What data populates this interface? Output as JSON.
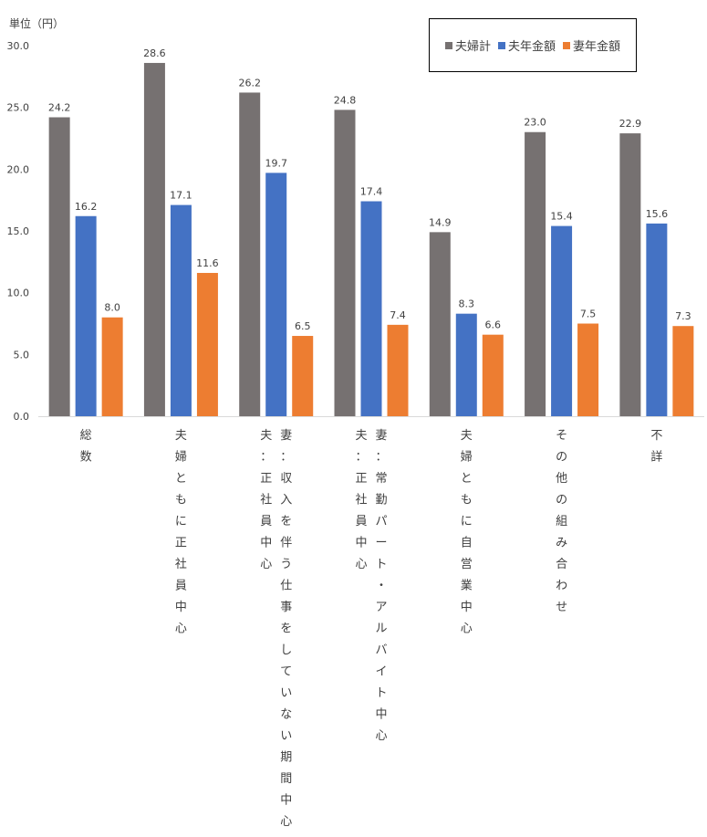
{
  "chart_data": {
    "type": "bar",
    "unit_label": "単位（円）",
    "categories": [
      [
        "総数"
      ],
      [
        "夫婦ともに正社員中心"
      ],
      [
        "夫：正社員中心",
        "妻：収入を伴う仕事をしていない期間中心"
      ],
      [
        "夫：正社員中心",
        "妻：常勤パート・アルバイト中心"
      ],
      [
        "夫婦ともに自営業中心"
      ],
      [
        "その他の組み合わせ"
      ],
      [
        "不詳"
      ]
    ],
    "series": [
      {
        "name": "夫婦計",
        "color": "#767171",
        "values": [
          24.2,
          28.6,
          26.2,
          24.8,
          14.9,
          23.0,
          22.9
        ]
      },
      {
        "name": "夫年金額",
        "color": "#4472C4",
        "values": [
          16.2,
          17.1,
          19.7,
          17.4,
          8.3,
          15.4,
          15.6
        ]
      },
      {
        "name": "妻年金額",
        "color": "#ED7D31",
        "values": [
          8.0,
          11.6,
          6.5,
          7.4,
          6.6,
          7.5,
          7.3
        ]
      }
    ],
    "ylim": [
      0,
      30
    ],
    "yticks": [
      "0.0",
      "5.0",
      "10.0",
      "15.0",
      "20.0",
      "25.0",
      "30.0"
    ],
    "grid": false,
    "legend_position": "top-right"
  }
}
